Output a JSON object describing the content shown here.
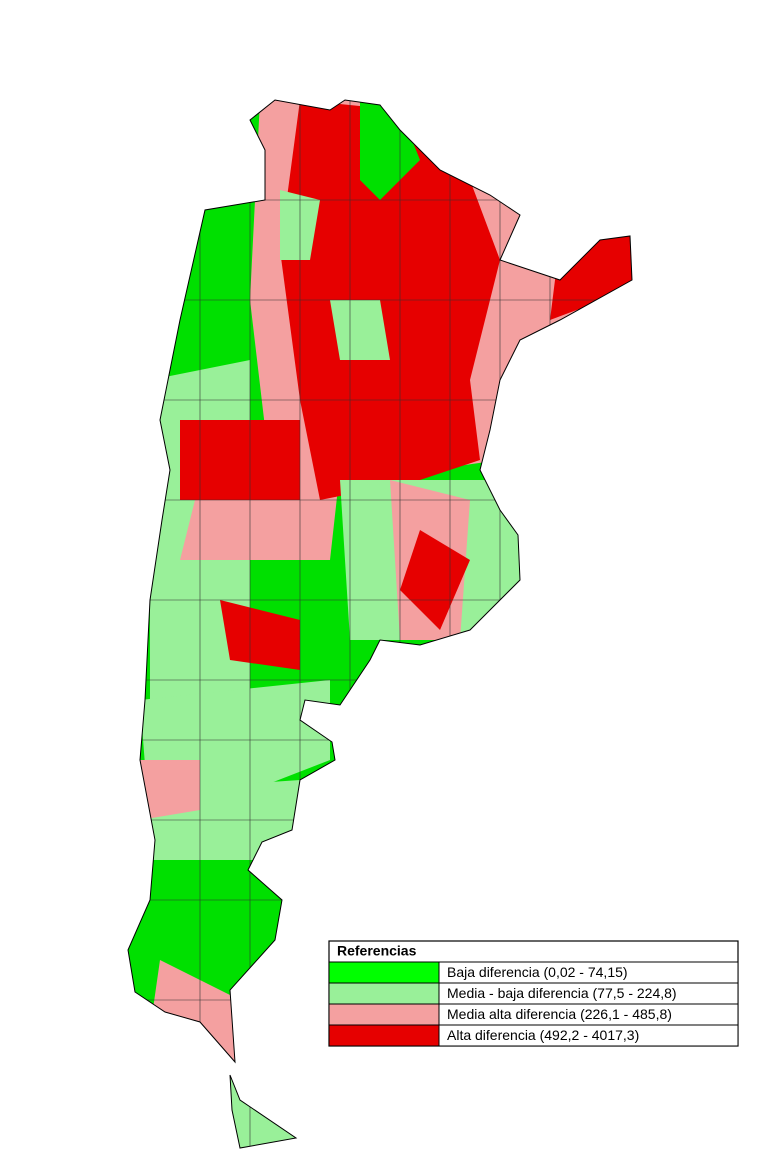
{
  "legend": {
    "title": "Referencias",
    "items": [
      {
        "label": "Baja diferencia (0,02 - 74,15)",
        "color": "#00ff00"
      },
      {
        "label": "Media - baja diferencia (77,5 - 224,8)",
        "color": "#99f099"
      },
      {
        "label": "Media alta diferencia (226,1 - 485,8)",
        "color": "#f4a0a0"
      },
      {
        "label": "Alta diferencia (492,2 - 4017,3)",
        "color": "#e60000"
      }
    ]
  }
}
